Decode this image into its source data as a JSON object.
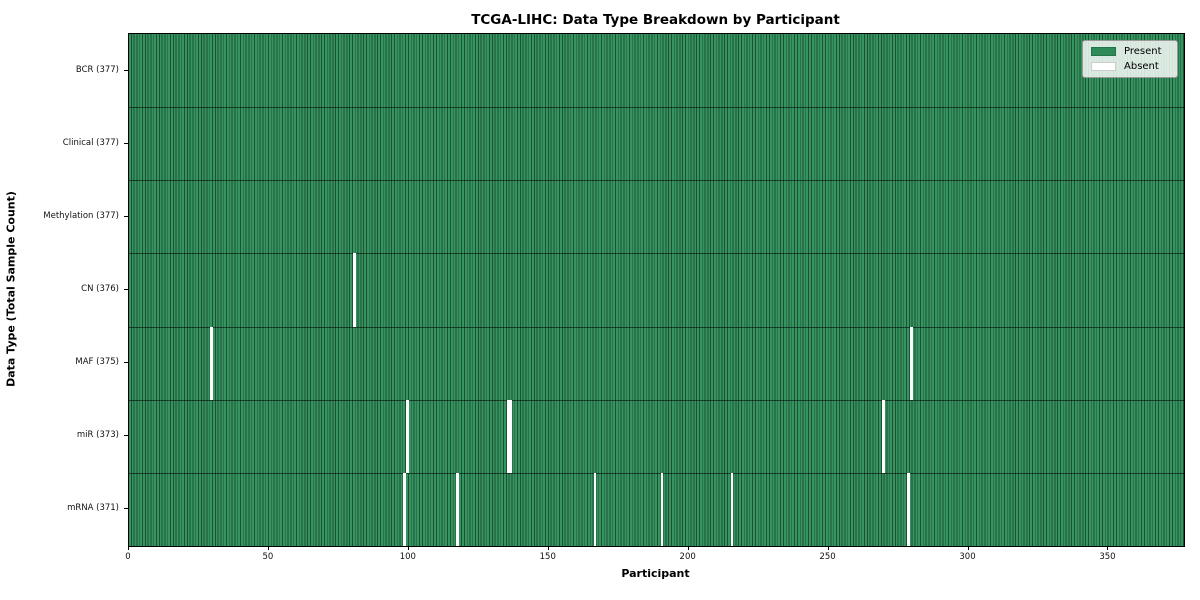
{
  "chart_data": {
    "type": "heatmap",
    "title": "TCGA-LIHC: Data Type Breakdown by Participant",
    "xlabel": "Participant",
    "ylabel": "Data Type (Total Sample Count)",
    "x_range": [
      0,
      377
    ],
    "n_participants": 377,
    "x_ticks": [
      0,
      50,
      100,
      150,
      200,
      250,
      300,
      350
    ],
    "grid": false,
    "legend_position": "upper right",
    "legend": [
      {
        "label": "Present",
        "color": "#2e8b57",
        "edge": "#24744b"
      },
      {
        "label": "Absent",
        "color": "#ffffff",
        "edge": "#cccccc"
      }
    ],
    "colors": {
      "present_fill": "#35945f",
      "cell_edge": "#1d5536",
      "absent_fill": "#ffffff",
      "plot_border": "#000000"
    },
    "rows": [
      {
        "label": "BCR (377)",
        "data_type": "BCR",
        "present_count": 377,
        "absent_count": 0,
        "absent_participants": []
      },
      {
        "label": "Clinical (377)",
        "data_type": "Clinical",
        "present_count": 377,
        "absent_count": 0,
        "absent_participants": []
      },
      {
        "label": "Methylation (377)",
        "data_type": "Methylation",
        "present_count": 377,
        "absent_count": 0,
        "absent_participants": []
      },
      {
        "label": "CN (376)",
        "data_type": "CN",
        "present_count": 376,
        "absent_count": 1,
        "absent_participants": [
          80
        ]
      },
      {
        "label": "MAF (375)",
        "data_type": "MAF",
        "present_count": 375,
        "absent_count": 2,
        "absent_participants": [
          29,
          279
        ]
      },
      {
        "label": "miR (373)",
        "data_type": "miR",
        "present_count": 373,
        "absent_count": 4,
        "absent_participants": [
          99,
          135,
          136,
          269
        ]
      },
      {
        "label": "mRNA (371)",
        "data_type": "mRNA",
        "present_count": 371,
        "absent_count": 6,
        "absent_participants": [
          98,
          117,
          166,
          190,
          215,
          278
        ]
      }
    ]
  }
}
